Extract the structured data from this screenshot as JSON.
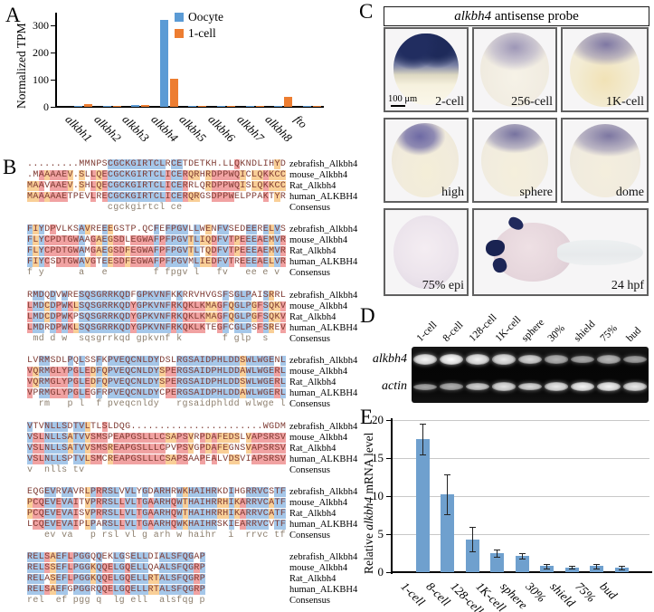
{
  "panelA": {
    "label": "A",
    "chart_data": {
      "type": "bar",
      "categories": [
        "alkbh1",
        "alkbh2",
        "alkbh3",
        "alkbh4",
        "alkbh5",
        "alkbh6",
        "alkbh7",
        "alkbh8",
        "fto"
      ],
      "series": [
        {
          "name": "Oocyte",
          "color": "#5b9bd5",
          "values": [
            3,
            0.5,
            7,
            320,
            1,
            0.3,
            0.3,
            1,
            0.3
          ]
        },
        {
          "name": "1-cell",
          "color": "#ed7d31",
          "values": [
            10,
            2,
            6,
            103,
            5,
            1,
            0.5,
            38,
            0.5
          ]
        }
      ],
      "title": "",
      "xlabel": "",
      "ylabel": "Normalized TPM",
      "yticks": [
        0,
        100,
        200,
        300
      ],
      "ylim": [
        0,
        340
      ],
      "grid": false,
      "legend_position": "top-right"
    }
  },
  "panelB": {
    "label": "B",
    "row_labels": [
      "zebrafish_Alkbh4",
      "mouse_Alkbh4",
      "Rat_Alkbh4",
      "human_ALKBH4"
    ],
    "consensus_label": "Consensus",
    "colors": {
      "identity_bg": "#a5c7e9",
      "high_bg": "#f1a2a2",
      "low_bg": "#f9cf97",
      "seq_text": "#7e3a32",
      "consensus_text": "#8d7f6e"
    },
    "blocks": [
      {
        "seqs": [
          ".........MMNPSCGCKGIRTCLRCETDETKH.LLQKNDLIHYD",
          ".MAAAAEV.SLLQECGCKGIRTCLICERQRHRDPPWQICLQKKCC",
          "MAAVAAEV.SHLQECGCKGIRTCLICERRLQRDPPWQISLQKKCC",
          "MAAAAAETPEVLRECGCKGIRTCLICERQRGSDPPWELPPAKTYR"
        ]
      },
      {
        "seqs": [
          "FIYDPVLKSAVREEEGSTP.QCFEFPGVLLWENFVSEDEERELVS",
          "FLYCPDTGWAAGAEGSDLEGWAFPFPGVTLIQDFVTPEEEAEMVR",
          "FLYCPDTGWAMGAEGSDFEGWAFPFPGVTLTQDFVTPEEEAEMVR",
          "FIYCSDTGWAVGTEESDFEGWAFPFPGVMLIEDFVTREEEAELVR"
        ]
      },
      {
        "seqs": [
          "RMDQDVWRESQSGRRKQDFGPKVNFKKRRVHVGSFSGLPAISRRL",
          "LMDCDPWKLSQSGRRKQDYGPKVNFRKQKLKMAGFQGLPGFSQKV",
          "LMDCDPWKPSQSGRRKQDYGPKVNFRKQKLKMAGFQGLPGFSQKV",
          "LMDRDPWKLSQSGRRKQDYGPKVNFRKQKLKTEGFCGLPSFSREV"
        ]
      },
      {
        "seqs": [
          "LVRMSDLPQLSSFKPVEQCNLDYDSLRGSAIDPHLDDSWLWGENL",
          "VQRMGLYPGLEDFQPVEQCNLDYSPERGSAIDPHLDDAWLWGERL",
          "VQRMGLYPGLEDFQPVEQCNLDYSPERGSAIDPHLDDSWLWGERL",
          "VPRMGLYPGLEGFRPVEQCNLDYCPERGSAIDPHLDDAWLWGERL"
        ]
      },
      {
        "seqs": [
          "VTVNLLSDTVLTLSLDQG.......................WGDM",
          "VSLNLLSATVVSMSPEAPGSLLLCSAPSVRPDAFEDSLVAPSRSV",
          "VSLNLLSATVVSMSREAPGSLLLCPVPSVGPDAFEGNSVAPSRSV",
          "VSLNLLSPTVLSMCREAPGSLLLCSAPSAAPEALVDSVIAPSRSV"
        ]
      },
      {
        "seqs": [
          "EQGEVRVAVRLPRRSLVVLYGDARHRWKHAIHRKDIHGRRVCSTF",
          "PCQEVEVAITVPRRSLLVLTGAARHQWTHAIHRRHIKARRVCATF",
          "PCQEVEVAISVPRRSLLVLTGAARHQWTHAIHRRHIKARRVCATF",
          "LCQEVEVAIPLPARSLLVLTGAARHQWKHAIHRSKIEARRVCVTF"
        ]
      },
      {
        "seqs": [
          "RELSAEFLPGGQQEKLGSELLDIALSFQGAP",
          "RELSSEFLPGGKQQELGQELLQAALSFQGRP",
          "RELASEFLPGGKQQELGQELLRTALSFQGRP",
          "RELSAEFGPGGRQQELGQELLRTALSFQGRP"
        ]
      }
    ]
  },
  "panelC": {
    "label": "C",
    "title_italic": "alkbh4",
    "title_rest": " antisense probe",
    "scale_bar": "100 μm",
    "cells": [
      {
        "stage": "2-cell"
      },
      {
        "stage": "256-cell"
      },
      {
        "stage": "1K-cell"
      },
      {
        "stage": "high"
      },
      {
        "stage": "sphere"
      },
      {
        "stage": "dome"
      },
      {
        "stage": "75% epi"
      },
      {
        "stage": "24 hpf"
      }
    ]
  },
  "panelD": {
    "label": "D",
    "lanes": [
      "1-cell",
      "8-cell",
      "128-cell",
      "1K-cell",
      "sphere",
      "30%",
      "shield",
      "75%",
      "bud"
    ],
    "rows": [
      {
        "gene": "alkbh4",
        "band_intensities": [
          0.95,
          1.0,
          0.93,
          0.88,
          0.78,
          0.58,
          0.52,
          0.6,
          0.48
        ]
      },
      {
        "gene": "actin",
        "band_intensities": [
          0.5,
          0.55,
          0.75,
          0.85,
          0.8,
          0.88,
          0.95,
          0.95,
          0.88
        ]
      }
    ]
  },
  "panelE": {
    "label": "E",
    "chart_data": {
      "type": "bar",
      "categories": [
        "1-cell",
        "8-cell",
        "128-cell",
        "1K-cell",
        "sphere",
        "30%",
        "shield",
        "75%",
        "bud"
      ],
      "values": [
        17.5,
        10.2,
        4.3,
        2.5,
        2.1,
        0.8,
        0.65,
        0.8,
        0.6
      ],
      "errors": [
        2.0,
        2.6,
        1.6,
        0.5,
        0.35,
        0.3,
        0.2,
        0.3,
        0.25
      ],
      "title": "",
      "xlabel": "",
      "ylabel_parts": [
        "Relative ",
        "alkbh4",
        " mRNA level"
      ],
      "yticks": [
        0,
        5,
        10,
        15,
        20
      ],
      "ylim": [
        0,
        20
      ],
      "bar_color": "#6fa0ce",
      "error_color": "#222222",
      "grid": true
    }
  }
}
